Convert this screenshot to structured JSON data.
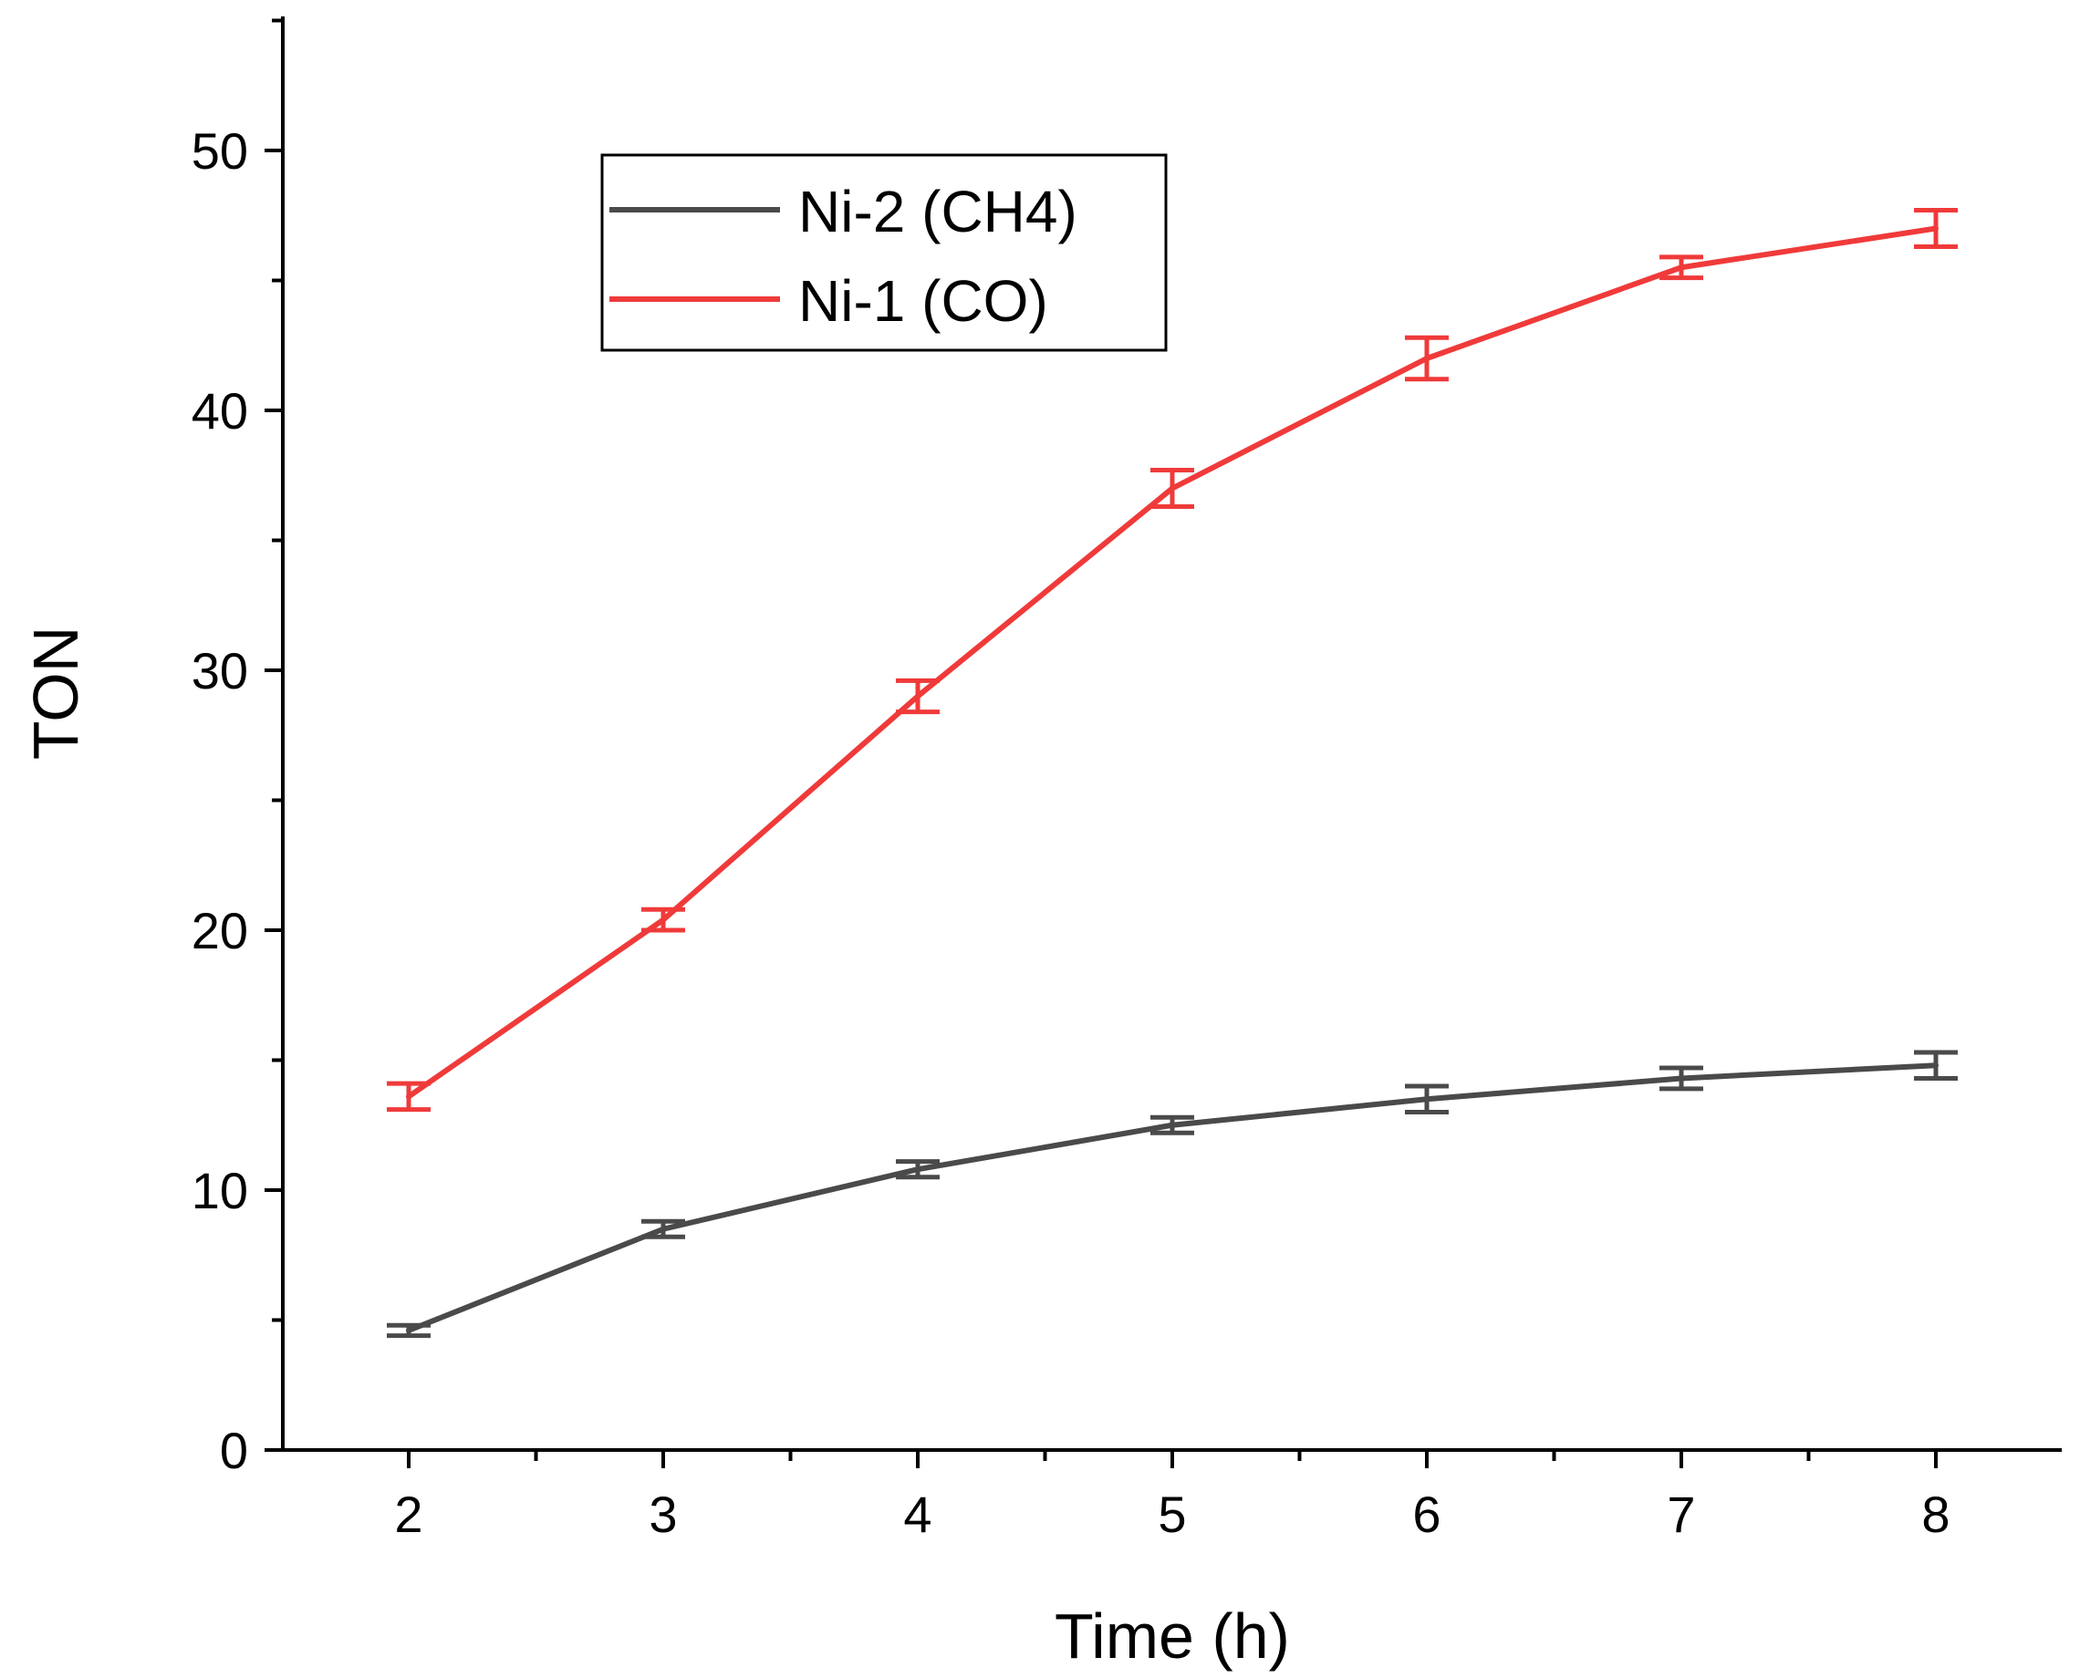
{
  "chart_data": {
    "type": "line",
    "title": "",
    "xlabel": "Time (h)",
    "ylabel": "TON",
    "xlim": [
      1.5,
      8.5
    ],
    "ylim": [
      0,
      55
    ],
    "x_ticks": [
      2,
      3,
      4,
      5,
      6,
      7,
      8
    ],
    "x_tick_labels": [
      "2",
      "3",
      "4",
      "5",
      "6",
      "7",
      "8"
    ],
    "y_ticks": [
      0,
      10,
      20,
      30,
      40,
      50
    ],
    "y_tick_labels": [
      "0",
      "10",
      "20",
      "30",
      "40",
      "50"
    ],
    "x_minor_step": 0.5,
    "y_minor_step": 5,
    "grid": false,
    "legend_position": "top-center",
    "series": [
      {
        "name": "Ni-2 (CH4)",
        "color": "#4a4a4a",
        "x": [
          2,
          3,
          4,
          5,
          6,
          7,
          8
        ],
        "values": [
          4.6,
          8.5,
          10.8,
          12.5,
          13.5,
          14.3,
          14.8
        ],
        "errors": [
          0.2,
          0.3,
          0.3,
          0.3,
          0.5,
          0.4,
          0.5
        ]
      },
      {
        "name": "Ni-1 (CO)",
        "color": "#f03a3a",
        "x": [
          2,
          3,
          4,
          5,
          6,
          7,
          8
        ],
        "values": [
          13.6,
          20.4,
          29.0,
          37.0,
          42.0,
          45.5,
          47.0
        ],
        "errors": [
          0.5,
          0.4,
          0.6,
          0.7,
          0.8,
          0.4,
          0.7
        ]
      }
    ]
  }
}
